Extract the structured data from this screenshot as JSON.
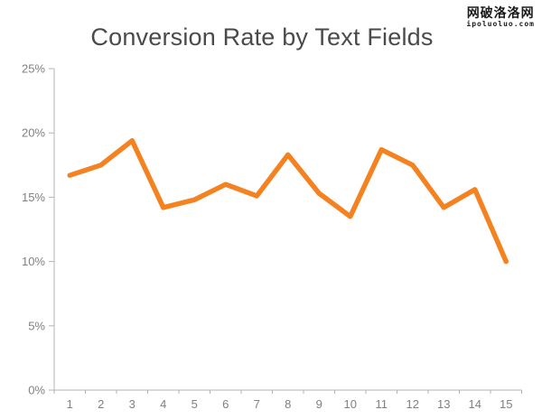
{
  "watermark": {
    "line1": "网破洛洛网",
    "line2": "ipoluoluo.com"
  },
  "chart_data": {
    "type": "line",
    "title": "Conversion Rate by Text Fields",
    "xlabel": "",
    "ylabel": "",
    "categories": [
      "1",
      "2",
      "3",
      "4",
      "5",
      "6",
      "7",
      "8",
      "9",
      "10",
      "11",
      "12",
      "13",
      "14",
      "15"
    ],
    "values": [
      16.7,
      17.5,
      19.4,
      14.2,
      14.8,
      16.0,
      15.1,
      18.3,
      15.3,
      13.5,
      18.7,
      17.5,
      14.2,
      15.6,
      10.0
    ],
    "ylim": [
      0,
      25
    ],
    "ytick_values": [
      0,
      5,
      10,
      15,
      20,
      25
    ],
    "ytick_labels": [
      "0%",
      "5%",
      "10%",
      "15%",
      "20%",
      "25%"
    ],
    "grid": false,
    "legend": "none",
    "line_color": "#F58220",
    "line_width": 5.5,
    "axis_color": "#b3b3b3",
    "tick_label_color": "#808080",
    "title_color": "#4a4a4a"
  }
}
